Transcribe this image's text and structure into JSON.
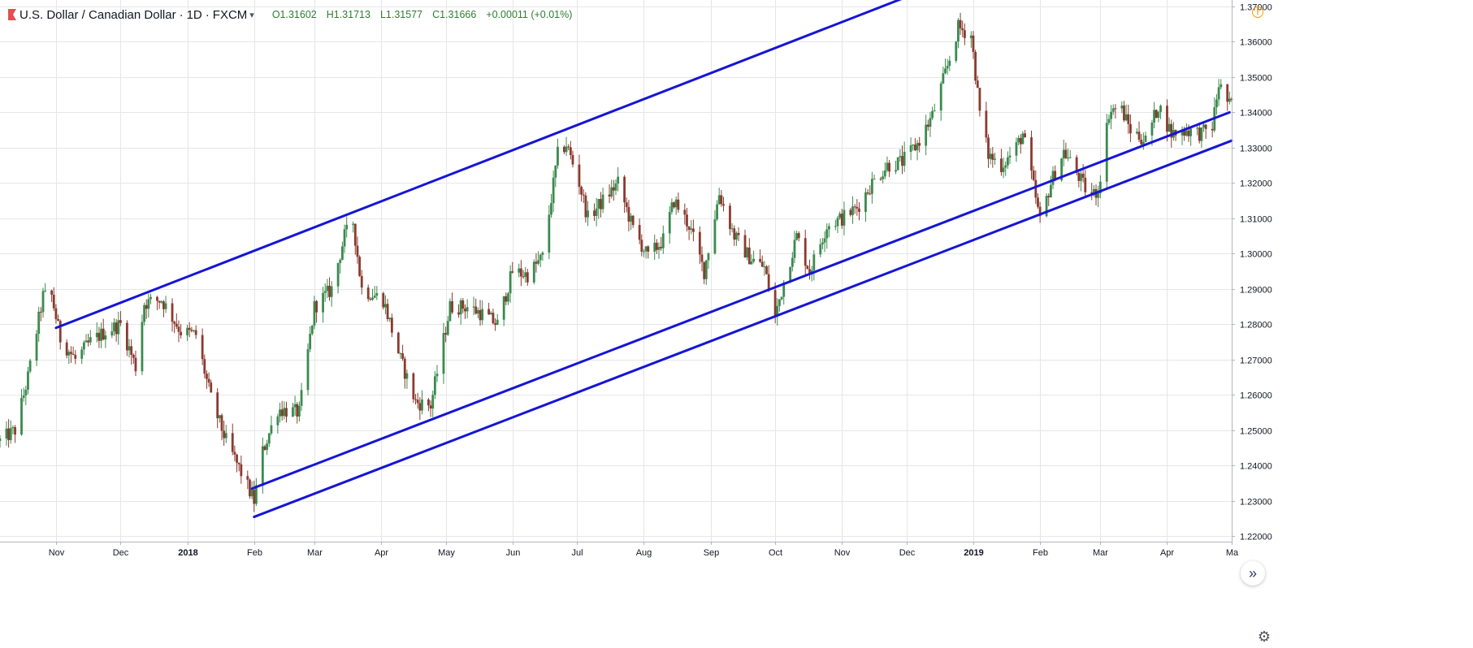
{
  "header": {
    "symbol": "U.S. Dollar / Canadian Dollar",
    "interval": "1D",
    "exchange": "FXCM",
    "open": "O1.31602",
    "high": "H1.31713",
    "low": "L1.31577",
    "close": "C1.31666",
    "change": "+0.00011 (+0.01%)"
  },
  "icons": {
    "warning": "warning-icon",
    "scroll": "double-chevron-right-icon",
    "settings": "gear-icon"
  },
  "colors": {
    "up": "#26a69a",
    "down": "#ef5350",
    "candle_up": "#3b8a4e",
    "candle_down": "#8b3a2f",
    "trendline": "#1515d6",
    "grid": "#e6e6e6",
    "warning": "#ff9800"
  },
  "chart_data": {
    "type": "candlestick",
    "title": "U.S. Dollar / Canadian Dollar · 1D · FXCM",
    "ylim": [
      1.2185,
      1.3718
    ],
    "y_ticks": [
      "1.37000",
      "1.36000",
      "1.35000",
      "1.34000",
      "1.33000",
      "1.32000",
      "1.31000",
      "1.30000",
      "1.29000",
      "1.28000",
      "1.27000",
      "1.26000",
      "1.25000",
      "1.24000",
      "1.23000",
      "1.22000"
    ],
    "xlim": [
      "2017-10-06",
      "2019-05-01"
    ],
    "x_ticks": [
      {
        "label": "Nov",
        "date": "2017-11-01",
        "bold": false
      },
      {
        "label": "Dec",
        "date": "2017-12-01",
        "bold": false
      },
      {
        "label": "2018",
        "date": "2018-01-01",
        "bold": true
      },
      {
        "label": "Feb",
        "date": "2018-02-01",
        "bold": false
      },
      {
        "label": "Mar",
        "date": "2018-03-01",
        "bold": false
      },
      {
        "label": "Apr",
        "date": "2018-04-01",
        "bold": false
      },
      {
        "label": "May",
        "date": "2018-05-01",
        "bold": false
      },
      {
        "label": "Jun",
        "date": "2018-06-01",
        "bold": false
      },
      {
        "label": "Jul",
        "date": "2018-07-01",
        "bold": false
      },
      {
        "label": "Aug",
        "date": "2018-08-01",
        "bold": false
      },
      {
        "label": "Sep",
        "date": "2018-09-01",
        "bold": false
      },
      {
        "label": "Oct",
        "date": "2018-10-01",
        "bold": false
      },
      {
        "label": "Nov",
        "date": "2018-11-01",
        "bold": false
      },
      {
        "label": "Dec",
        "date": "2018-12-01",
        "bold": false
      },
      {
        "label": "2019",
        "date": "2019-01-01",
        "bold": true
      },
      {
        "label": "Feb",
        "date": "2019-02-01",
        "bold": false
      },
      {
        "label": "Mar",
        "date": "2019-03-01",
        "bold": false
      },
      {
        "label": "Apr",
        "date": "2019-04-01",
        "bold": false
      },
      {
        "label": "Ma",
        "date": "2019-05-01",
        "bold": false
      }
    ],
    "close_path": [
      [
        "2017-10-06",
        1.247
      ],
      [
        "2017-10-13",
        1.25
      ],
      [
        "2017-10-19",
        1.265
      ],
      [
        "2017-10-26",
        1.288
      ],
      [
        "2017-10-30",
        1.288
      ],
      [
        "2017-11-03",
        1.276
      ],
      [
        "2017-11-10",
        1.27
      ],
      [
        "2017-11-17",
        1.275
      ],
      [
        "2017-11-24",
        1.278
      ],
      [
        "2017-12-01",
        1.28
      ],
      [
        "2017-12-08",
        1.268
      ],
      [
        "2017-12-12",
        1.286
      ],
      [
        "2017-12-20",
        1.287
      ],
      [
        "2017-12-29",
        1.278
      ],
      [
        "2018-01-05",
        1.277
      ],
      [
        "2018-01-12",
        1.259
      ],
      [
        "2018-01-19",
        1.247
      ],
      [
        "2018-01-26",
        1.238
      ],
      [
        "2018-02-01",
        1.23
      ],
      [
        "2018-02-05",
        1.244
      ],
      [
        "2018-02-12",
        1.256
      ],
      [
        "2018-02-22",
        1.255
      ],
      [
        "2018-03-01",
        1.285
      ],
      [
        "2018-03-09",
        1.29
      ],
      [
        "2018-03-15",
        1.305
      ],
      [
        "2018-03-19",
        1.309
      ],
      [
        "2018-03-23",
        1.29
      ],
      [
        "2018-04-02",
        1.287
      ],
      [
        "2018-04-10",
        1.27
      ],
      [
        "2018-04-17",
        1.258
      ],
      [
        "2018-04-24",
        1.257
      ],
      [
        "2018-05-03",
        1.285
      ],
      [
        "2018-05-11",
        1.285
      ],
      [
        "2018-05-18",
        1.283
      ],
      [
        "2018-05-25",
        1.28
      ],
      [
        "2018-06-01",
        1.295
      ],
      [
        "2018-06-08",
        1.294
      ],
      [
        "2018-06-15",
        1.299
      ],
      [
        "2018-06-22",
        1.328
      ],
      [
        "2018-06-26",
        1.331
      ],
      [
        "2018-07-02",
        1.32
      ],
      [
        "2018-07-06",
        1.31
      ],
      [
        "2018-07-13",
        1.315
      ],
      [
        "2018-07-20",
        1.32
      ],
      [
        "2018-07-27",
        1.307
      ],
      [
        "2018-08-03",
        1.299
      ],
      [
        "2018-08-10",
        1.304
      ],
      [
        "2018-08-15",
        1.315
      ],
      [
        "2018-08-22",
        1.308
      ],
      [
        "2018-08-29",
        1.295
      ],
      [
        "2018-09-05",
        1.317
      ],
      [
        "2018-09-12",
        1.305
      ],
      [
        "2018-09-19",
        1.299
      ],
      [
        "2018-09-26",
        1.296
      ],
      [
        "2018-10-01",
        1.282
      ],
      [
        "2018-10-05",
        1.292
      ],
      [
        "2018-10-11",
        1.305
      ],
      [
        "2018-10-17",
        1.295
      ],
      [
        "2018-10-25",
        1.308
      ],
      [
        "2018-11-01",
        1.31
      ],
      [
        "2018-11-08",
        1.313
      ],
      [
        "2018-11-15",
        1.32
      ],
      [
        "2018-11-22",
        1.325
      ],
      [
        "2018-11-29",
        1.326
      ],
      [
        "2018-12-06",
        1.331
      ],
      [
        "2018-12-13",
        1.339
      ],
      [
        "2018-12-20",
        1.353
      ],
      [
        "2018-12-25",
        1.364
      ],
      [
        "2018-12-31",
        1.362
      ],
      [
        "2019-01-04",
        1.34
      ],
      [
        "2019-01-08",
        1.328
      ],
      [
        "2019-01-14",
        1.325
      ],
      [
        "2019-01-20",
        1.329
      ],
      [
        "2019-01-24",
        1.334
      ],
      [
        "2019-01-29",
        1.319
      ],
      [
        "2019-02-01",
        1.309
      ],
      [
        "2019-02-06",
        1.32
      ],
      [
        "2019-02-12",
        1.329
      ],
      [
        "2019-02-18",
        1.323
      ],
      [
        "2019-02-24",
        1.316
      ],
      [
        "2019-02-28",
        1.318
      ],
      [
        "2019-03-05",
        1.34
      ],
      [
        "2019-03-10",
        1.342
      ],
      [
        "2019-03-15",
        1.335
      ],
      [
        "2019-03-22",
        1.332
      ],
      [
        "2019-03-28",
        1.342
      ],
      [
        "2019-04-03",
        1.334
      ],
      [
        "2019-04-10",
        1.335
      ],
      [
        "2019-04-17",
        1.334
      ],
      [
        "2019-04-22",
        1.336
      ],
      [
        "2019-04-25",
        1.348
      ],
      [
        "2019-04-30",
        1.342
      ]
    ],
    "trendlines": [
      {
        "name": "upper-channel",
        "from": [
          "2017-11-01",
          1.279
        ],
        "to": [
          "2019-01-03",
          1.3805
        ]
      },
      {
        "name": "middle-channel",
        "from": [
          "2018-01-31",
          1.2335
        ],
        "to": [
          "2019-04-30",
          1.34
        ]
      },
      {
        "name": "lower-channel",
        "from": [
          "2018-02-01",
          1.2255
        ],
        "to": [
          "2019-05-01",
          1.332
        ]
      }
    ]
  }
}
